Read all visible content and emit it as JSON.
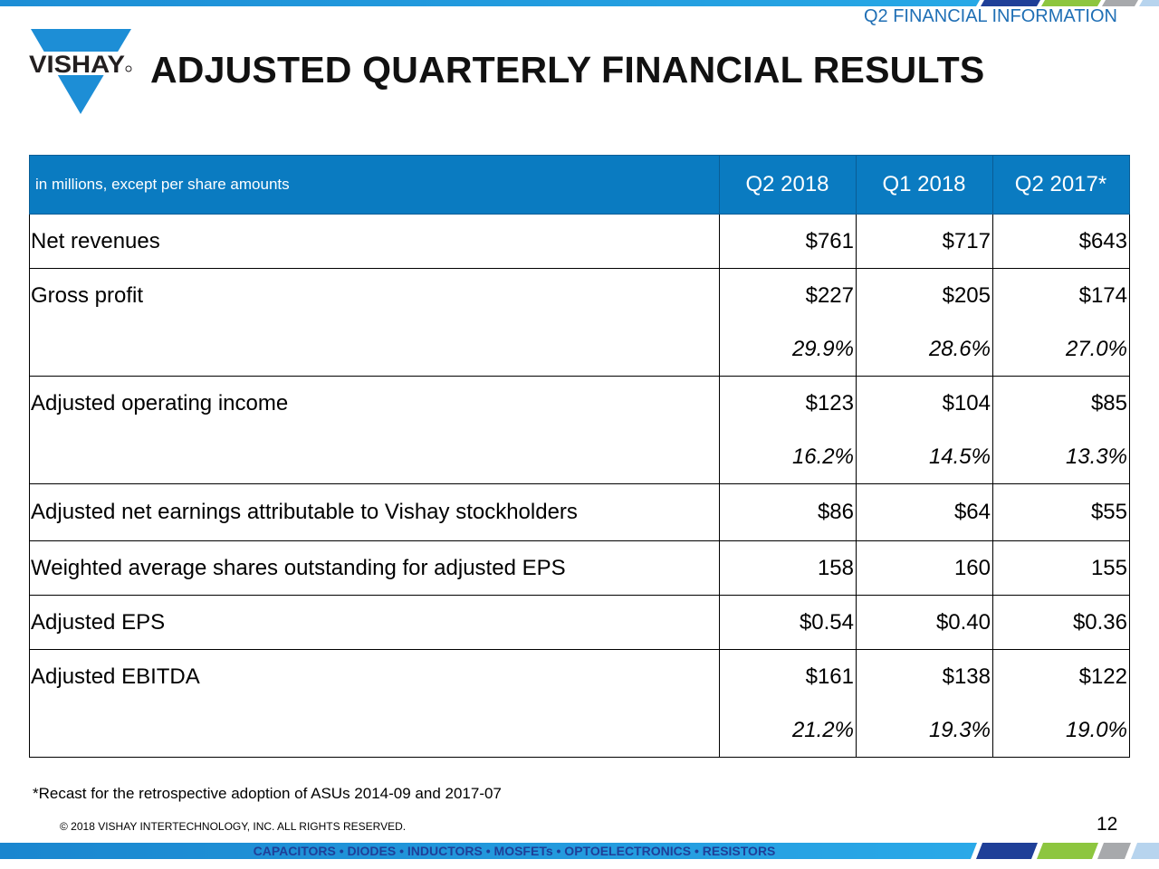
{
  "header": {
    "section": "Q2 FINANCIAL INFORMATION",
    "title": "ADJUSTED QUARTERLY FINANCIAL RESULTS",
    "logo_text": "VISHAY"
  },
  "colors": {
    "brand_blue": "#0a7bc1",
    "dark_blue": "#1f3f98",
    "green": "#8dc63f",
    "gray": "#a7a9ac",
    "light_blue": "#b7d4ee"
  },
  "table": {
    "units": "in millions, except per share amounts",
    "columns": [
      "Q2 2018",
      "Q1 2018",
      "Q2 2017*"
    ],
    "rows": [
      {
        "label": "Net revenues",
        "values": [
          "$761",
          "$717",
          "$643"
        ]
      },
      {
        "label": "Gross profit",
        "values": [
          "$227",
          "$205",
          "$174"
        ],
        "pct": [
          "29.9%",
          "28.6%",
          "27.0%"
        ]
      },
      {
        "label": "Adjusted operating income",
        "values": [
          "$123",
          "$104",
          "$85"
        ],
        "pct": [
          "16.2%",
          "14.5%",
          "13.3%"
        ]
      },
      {
        "label": "Adjusted net earnings attributable to Vishay stockholders",
        "values": [
          "$86",
          "$64",
          "$55"
        ]
      },
      {
        "label": "Weighted average shares outstanding for adjusted EPS",
        "values": [
          "158",
          "160",
          "155"
        ]
      },
      {
        "label": "Adjusted EPS",
        "values": [
          "$0.54",
          "$0.40",
          "$0.36"
        ]
      },
      {
        "label": "Adjusted EBITDA",
        "values": [
          "$161",
          "$138",
          "$122"
        ],
        "pct": [
          "21.2%",
          "19.3%",
          "19.0%"
        ]
      }
    ]
  },
  "footer": {
    "note": "*Recast for the retrospective adoption of ASUs 2014-09 and 2017-07",
    "copyright": "©  2018 VISHAY INTERTECHNOLOGY, INC. ALL RIGHTS RESERVED.",
    "page": "12",
    "products": "CAPACITORS • DIODES • INDUCTORS • MOSFETs • OPTOELECTRONICS • RESISTORS"
  }
}
